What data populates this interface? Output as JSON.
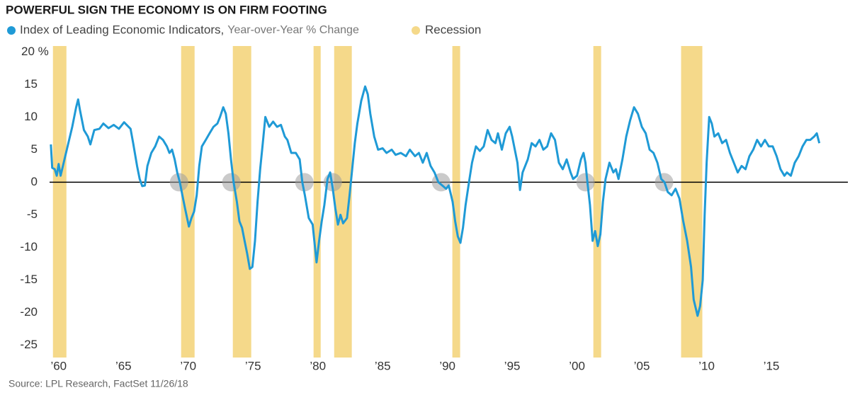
{
  "chart_data": {
    "type": "line",
    "title": "POWERFUL SIGN THE ECONOMY IS ON FIRM FOOTING",
    "source": "Source: LPL Research, FactSet   11/26/18",
    "xlim": [
      1959.3,
      2020.9
    ],
    "ylim": [
      -26.9,
      20.9
    ],
    "xticks": [
      {
        "value": 1960,
        "label": "’60"
      },
      {
        "value": 1965,
        "label": "’65"
      },
      {
        "value": 1970,
        "label": "’70"
      },
      {
        "value": 1975,
        "label": "’75"
      },
      {
        "value": 1980,
        "label": "’80"
      },
      {
        "value": 1985,
        "label": "’85"
      },
      {
        "value": 1990,
        "label": "’90"
      },
      {
        "value": 1995,
        "label": "’95"
      },
      {
        "value": 2000,
        "label": "’00"
      },
      {
        "value": 2005,
        "label": "’05"
      },
      {
        "value": 2010,
        "label": "’10"
      },
      {
        "value": 2015,
        "label": "’15"
      }
    ],
    "yticks": [
      {
        "value": 20,
        "label": "20 %"
      },
      15,
      10,
      5,
      0,
      -5,
      -10,
      -15,
      -20,
      -25
    ],
    "zero_line": true,
    "recessions": {
      "name": "Recession",
      "color": "#f5d98a",
      "spans": [
        [
          1959.56,
          1960.6
        ],
        [
          1969.45,
          1970.49
        ],
        [
          1973.44,
          1974.86
        ],
        [
          1979.67,
          1980.22
        ],
        [
          1981.26,
          1982.62
        ],
        [
          1990.38,
          1990.98
        ],
        [
          2001.26,
          2001.86
        ],
        [
          2008.03,
          2009.67
        ]
      ]
    },
    "highlights": {
      "color": "#9e9e9e",
      "x": [
        1969.29,
        1973.33,
        1978.96,
        1981.15,
        1989.51,
        2000.66,
        2006.72
      ],
      "y": [
        0,
        0,
        0,
        0,
        0,
        0,
        0
      ]
    },
    "x": [
      1959.4,
      1959.5,
      1959.7,
      1959.85,
      1960.0,
      1960.15,
      1960.45,
      1960.75,
      1961.05,
      1961.35,
      1961.5,
      1961.65,
      1961.95,
      1962.25,
      1962.45,
      1962.75,
      1963.15,
      1963.45,
      1963.85,
      1964.25,
      1964.65,
      1965.05,
      1965.55,
      1965.75,
      1966.05,
      1966.25,
      1966.45,
      1966.65,
      1966.85,
      1967.15,
      1967.45,
      1967.75,
      1968.05,
      1968.35,
      1968.55,
      1968.75,
      1968.95,
      1969.15,
      1969.35,
      1969.55,
      1969.75,
      1970.05,
      1970.25,
      1970.45,
      1970.65,
      1970.85,
      1971.05,
      1971.35,
      1971.65,
      1971.95,
      1972.25,
      1972.45,
      1972.7,
      1972.9,
      1973.1,
      1973.3,
      1973.5,
      1973.75,
      1973.95,
      1974.15,
      1974.35,
      1974.55,
      1974.75,
      1974.95,
      1975.15,
      1975.35,
      1975.55,
      1975.75,
      1975.95,
      1976.25,
      1976.55,
      1976.85,
      1977.15,
      1977.45,
      1977.65,
      1977.95,
      1978.3,
      1978.6,
      1978.8,
      1979.0,
      1979.3,
      1979.6,
      1979.9,
      1980.1,
      1980.3,
      1980.5,
      1980.75,
      1980.95,
      1981.15,
      1981.35,
      1981.55,
      1981.75,
      1981.95,
      1982.25,
      1982.45,
      1982.65,
      1982.85,
      1983.05,
      1983.35,
      1983.65,
      1983.85,
      1984.05,
      1984.35,
      1984.65,
      1985.0,
      1985.3,
      1985.7,
      1986.0,
      1986.4,
      1986.8,
      1987.1,
      1987.5,
      1987.8,
      1988.1,
      1988.4,
      1988.7,
      1989.0,
      1989.3,
      1989.6,
      1989.9,
      1990.1,
      1990.4,
      1990.6,
      1990.8,
      1991.0,
      1991.2,
      1991.4,
      1991.7,
      1991.9,
      1992.2,
      1992.5,
      1992.8,
      1993.1,
      1993.4,
      1993.7,
      1993.9,
      1994.2,
      1994.5,
      1994.8,
      1995.0,
      1995.2,
      1995.4,
      1995.6,
      1995.8,
      1996.2,
      1996.5,
      1996.8,
      1997.1,
      1997.4,
      1997.7,
      1998.0,
      1998.3,
      1998.6,
      1998.9,
      1999.2,
      1999.5,
      1999.7,
      2000.0,
      2000.3,
      2000.5,
      2000.65,
      2000.8,
      2001.0,
      2001.2,
      2001.4,
      2001.6,
      2001.8,
      2002.0,
      2002.2,
      2002.5,
      2002.8,
      2003.0,
      2003.2,
      2003.5,
      2003.8,
      2004.1,
      2004.4,
      2004.7,
      2005.0,
      2005.3,
      2005.6,
      2005.9,
      2006.2,
      2006.5,
      2006.75,
      2007.0,
      2007.3,
      2007.6,
      2007.9,
      2008.2,
      2008.5,
      2008.8,
      2009.0,
      2009.3,
      2009.5,
      2009.7,
      2009.85,
      2010.0,
      2010.2,
      2010.4,
      2010.6,
      2010.9,
      2011.2,
      2011.5,
      2011.8,
      2012.1,
      2012.4,
      2012.7,
      2013.0,
      2013.3,
      2013.6,
      2013.9,
      2014.2,
      2014.5,
      2014.8,
      2015.1,
      2015.4,
      2015.7,
      2016.0,
      2016.2,
      2016.5,
      2016.8,
      2017.1,
      2017.4,
      2017.7,
      2018.0,
      2018.3,
      2018.5,
      2018.7
    ],
    "series": [
      {
        "name": "Index of Leading Economic Indicators,",
        "name_detail": "Year-over-Year % Change",
        "color": "#1f9ad6",
        "values": [
          5.8,
          2.2,
          2.0,
          1.0,
          2.8,
          1.0,
          3.5,
          6,
          8.5,
          11.5,
          12.7,
          11,
          8,
          7,
          5.8,
          8,
          8.2,
          9,
          8.3,
          8.8,
          8.2,
          9.2,
          8.2,
          6,
          2.5,
          0.5,
          -0.6,
          -0.5,
          2.5,
          4.5,
          5.5,
          7,
          6.5,
          5.5,
          4.5,
          5.0,
          3.5,
          1.5,
          0,
          -2,
          -4,
          -6.8,
          -5.5,
          -4.5,
          -2,
          2.5,
          5.5,
          6.5,
          7.5,
          8.5,
          9,
          10,
          11.5,
          10.5,
          7.5,
          3.5,
          0,
          -3,
          -6,
          -7,
          -9,
          -11,
          -13.3,
          -13,
          -9,
          -3,
          2,
          6,
          10,
          8.5,
          9.3,
          8.5,
          8.8,
          7,
          6.5,
          4.5,
          4.5,
          3.5,
          0,
          -2,
          -5.5,
          -6.5,
          -12.3,
          -9,
          -6,
          -3.5,
          0.5,
          1.5,
          -1,
          -4,
          -6.5,
          -5,
          -6.3,
          -5.5,
          -2,
          2,
          6,
          9,
          12.5,
          14.7,
          13.5,
          10.5,
          7,
          5,
          5.2,
          4.5,
          5,
          4.2,
          4.5,
          4.0,
          5.0,
          4.0,
          4.5,
          3,
          4.5,
          2.5,
          1.5,
          0,
          -0.5,
          -1,
          -0.5,
          -3,
          -6,
          -8.3,
          -9.3,
          -7,
          -3.5,
          0.5,
          3,
          5.5,
          4.8,
          5.5,
          8.0,
          6.5,
          6,
          7.5,
          5.0,
          7.5,
          8.5,
          7,
          5,
          3,
          -1.2,
          1.5,
          3.5,
          6,
          5.5,
          6.5,
          5,
          5.5,
          7.5,
          6.5,
          3,
          2,
          3.5,
          1.5,
          0.5,
          1,
          3.5,
          4.5,
          3,
          0,
          -3.5,
          -9,
          -7.5,
          -9.8,
          -8,
          -3,
          0.5,
          3,
          1.5,
          2,
          0.5,
          3.5,
          7,
          9.5,
          11.5,
          10.5,
          8.5,
          7.5,
          5,
          4.5,
          3,
          0.5,
          0,
          -1.5,
          -2,
          -1,
          -2.5,
          -6,
          -9,
          -13,
          -18,
          -20.5,
          -19,
          -15,
          -5,
          3,
          10,
          9,
          7,
          7.5,
          6,
          6.5,
          4.5,
          3,
          1.5,
          2.5,
          2,
          4,
          5,
          6.5,
          5.5,
          6.5,
          5.5,
          5.5,
          4,
          2,
          1,
          1.5,
          1,
          3,
          4,
          5.5,
          6.5,
          6.5,
          7,
          7.5,
          6
        ]
      }
    ]
  }
}
